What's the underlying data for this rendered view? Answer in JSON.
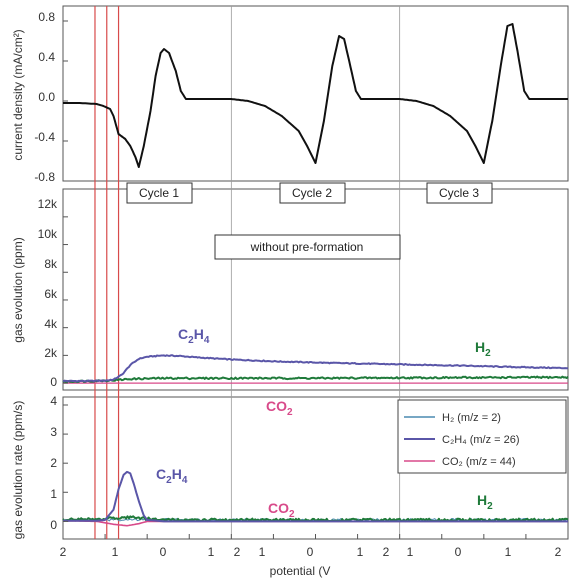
{
  "chart_data": [
    {
      "type": "line",
      "panel": "top",
      "ylabel": "current density (mA/cm²)",
      "ylim": [
        -0.8,
        0.8
      ],
      "yticks": [
        "0.8",
        "0.4",
        "0.0",
        "-0.4",
        "-0.8"
      ],
      "ytick_values": [
        0.8,
        0.4,
        0.0,
        -0.4,
        -0.8
      ],
      "cycle_labels": [
        "Cycle 1",
        "Cycle 2",
        "Cycle 3"
      ],
      "series": [
        {
          "color": "#111111",
          "values": [
            [
              0.0,
              -0.02
            ],
            [
              0.1,
              -0.02
            ],
            [
              0.2,
              -0.03
            ],
            [
              0.24,
              -0.05
            ],
            [
              0.28,
              -0.08
            ],
            [
              0.3,
              -0.15
            ],
            [
              0.33,
              -0.33
            ],
            [
              0.37,
              -0.38
            ],
            [
              0.4,
              -0.45
            ],
            [
              0.43,
              -0.56
            ],
            [
              0.45,
              -0.66
            ],
            [
              0.48,
              -0.45
            ],
            [
              0.52,
              -0.1
            ],
            [
              0.55,
              0.25
            ],
            [
              0.58,
              0.48
            ],
            [
              0.6,
              0.52
            ],
            [
              0.63,
              0.48
            ],
            [
              0.67,
              0.3
            ],
            [
              0.7,
              0.1
            ],
            [
              0.73,
              0.02
            ],
            [
              0.8,
              0.02
            ],
            [
              1.0,
              0.02
            ],
            [
              1.1,
              0.0
            ],
            [
              1.2,
              -0.05
            ],
            [
              1.3,
              -0.15
            ],
            [
              1.4,
              -0.3
            ],
            [
              1.45,
              -0.45
            ],
            [
              1.5,
              -0.62
            ],
            [
              1.55,
              -0.2
            ],
            [
              1.6,
              0.35
            ],
            [
              1.64,
              0.65
            ],
            [
              1.67,
              0.62
            ],
            [
              1.7,
              0.4
            ],
            [
              1.74,
              0.1
            ],
            [
              1.77,
              0.02
            ],
            [
              1.85,
              0.02
            ],
            [
              2.0,
              0.02
            ],
            [
              2.1,
              0.0
            ],
            [
              2.2,
              -0.05
            ],
            [
              2.3,
              -0.15
            ],
            [
              2.4,
              -0.3
            ],
            [
              2.45,
              -0.45
            ],
            [
              2.5,
              -0.62
            ],
            [
              2.55,
              -0.2
            ],
            [
              2.6,
              0.35
            ],
            [
              2.64,
              0.75
            ],
            [
              2.67,
              0.77
            ],
            [
              2.7,
              0.5
            ],
            [
              2.74,
              0.1
            ],
            [
              2.77,
              0.02
            ],
            [
              2.85,
              0.02
            ],
            [
              3.0,
              0.02
            ]
          ]
        }
      ]
    },
    {
      "type": "line",
      "panel": "middle",
      "ylabel": "gas evolution (ppm)",
      "ylim": [
        -500,
        13000
      ],
      "yticks": [
        "12k",
        "10k",
        "8k",
        "6k",
        "4k",
        "2k",
        "0"
      ],
      "ytick_values": [
        12000,
        10000,
        8000,
        6000,
        4000,
        2000,
        0
      ],
      "annotation": "without pre-formation",
      "series": [
        {
          "name": "C2H4",
          "color": "#5a56a8",
          "values": [
            [
              0.0,
              150
            ],
            [
              0.15,
              150
            ],
            [
              0.25,
              180
            ],
            [
              0.3,
              250
            ],
            [
              0.35,
              600
            ],
            [
              0.4,
              1300
            ],
            [
              0.45,
              1750
            ],
            [
              0.5,
              1900
            ],
            [
              0.6,
              2000
            ],
            [
              0.7,
              1950
            ],
            [
              0.8,
              1850
            ],
            [
              1.0,
              1700
            ],
            [
              1.3,
              1550
            ],
            [
              1.6,
              1450
            ],
            [
              2.0,
              1350
            ],
            [
              2.4,
              1250
            ],
            [
              2.7,
              1150
            ],
            [
              3.0,
              1080
            ]
          ]
        },
        {
          "name": "H2",
          "color": "#1f7a3a",
          "values": [
            [
              0.0,
              100
            ],
            [
              0.3,
              200
            ],
            [
              0.4,
              300
            ],
            [
              0.6,
              350
            ],
            [
              1.0,
              350
            ],
            [
              1.5,
              350
            ],
            [
              2.0,
              380
            ],
            [
              2.5,
              400
            ],
            [
              3.0,
              420
            ]
          ]
        },
        {
          "name": "CO2",
          "color": "#d84a8a",
          "values": [
            [
              0.0,
              0
            ],
            [
              1.0,
              0
            ],
            [
              2.0,
              0
            ],
            [
              3.0,
              0
            ]
          ]
        }
      ]
    },
    {
      "type": "line",
      "panel": "bottom",
      "ylabel": "gas evolution rate (ppm/s)",
      "xlabel": "potential (V",
      "ylim": [
        -0.4,
        4
      ],
      "yticks": [
        "4",
        "3",
        "2",
        "1",
        "0"
      ],
      "ytick_values": [
        4,
        3,
        2,
        1,
        0
      ],
      "xticks": [
        "2",
        "1",
        "0",
        "1",
        "2",
        "1",
        "0",
        "1",
        "2",
        "1",
        "0",
        "1",
        "2"
      ],
      "series": [
        {
          "name": "H₂ (m/z = 2)",
          "color": "#4a8ab0",
          "values": [
            [
              0.0,
              0.05
            ],
            [
              1.0,
              0.05
            ],
            [
              2.0,
              0.05
            ],
            [
              3.0,
              0.05
            ]
          ]
        },
        {
          "name": "C₂H₄ (m/z = 26)",
          "color": "#5a56a8",
          "values": [
            [
              0.0,
              0.02
            ],
            [
              0.2,
              0.02
            ],
            [
              0.25,
              0.05
            ],
            [
              0.3,
              0.4
            ],
            [
              0.33,
              1.1
            ],
            [
              0.36,
              1.6
            ],
            [
              0.38,
              1.7
            ],
            [
              0.4,
              1.65
            ],
            [
              0.42,
              1.3
            ],
            [
              0.45,
              0.7
            ],
            [
              0.48,
              0.2
            ],
            [
              0.5,
              0.05
            ],
            [
              0.6,
              0.0
            ],
            [
              1.0,
              0.0
            ],
            [
              2.0,
              0.0
            ],
            [
              3.0,
              0.0
            ]
          ]
        },
        {
          "name": "CO₂ (m/z = 44)",
          "color": "#d84a8a",
          "values": [
            [
              0.0,
              0.02
            ],
            [
              0.2,
              0.0
            ],
            [
              0.3,
              -0.1
            ],
            [
              0.38,
              -0.15
            ],
            [
              0.45,
              -0.08
            ],
            [
              0.5,
              0.0
            ],
            [
              1.0,
              0.0
            ],
            [
              2.0,
              0.0
            ],
            [
              3.0,
              0.0
            ]
          ]
        },
        {
          "name": "H2",
          "color": "#1f7a3a",
          "values": [
            [
              0.0,
              0.05
            ],
            [
              0.3,
              0.1
            ],
            [
              0.4,
              0.15
            ],
            [
              0.5,
              0.1
            ],
            [
              0.6,
              0.05
            ],
            [
              1.0,
              0.05
            ],
            [
              2.0,
              0.05
            ],
            [
              3.0,
              0.05
            ]
          ]
        }
      ],
      "annotations": {
        "c2h4": "C₂H₄",
        "co2": "CO₂",
        "h2": "H₂"
      }
    }
  ],
  "colors": {
    "cycle_sep": "#9a9a9a",
    "red_markers": "#d84a4a",
    "c2h4": "#5a56a8",
    "h2": "#1f7a3a",
    "co2": "#d84a8a"
  }
}
